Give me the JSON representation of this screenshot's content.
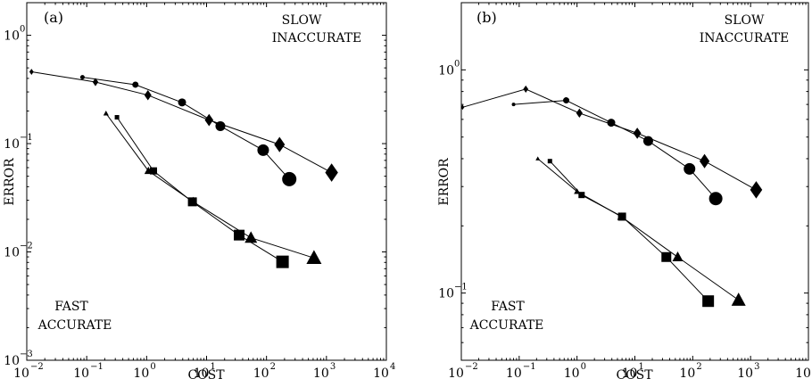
{
  "chart_data": [
    {
      "type": "scatter",
      "panel_label": "(a)",
      "xlabel": "COST",
      "ylabel": "ERROR",
      "xscale": "log",
      "yscale": "log",
      "xlim": [
        0.01,
        10000
      ],
      "ylim": [
        0.001,
        2
      ],
      "x_ticks": [
        {
          "value": 0.01,
          "base": "10",
          "exp": "−2"
        },
        {
          "value": 0.1,
          "base": "10",
          "exp": "−1"
        },
        {
          "value": 1,
          "base": "10",
          "exp": "0"
        },
        {
          "value": 10,
          "base": "10",
          "exp": "1"
        },
        {
          "value": 100,
          "base": "10",
          "exp": "2"
        },
        {
          "value": 1000,
          "base": "10",
          "exp": "3"
        },
        {
          "value": 10000,
          "base": "10",
          "exp": "4"
        }
      ],
      "y_ticks": [
        {
          "value": 0.001,
          "base": "10",
          "exp": "−3"
        },
        {
          "value": 0.01,
          "base": "10",
          "exp": "−2"
        },
        {
          "value": 0.1,
          "base": "10",
          "exp": "−1"
        },
        {
          "value": 1,
          "base": "10",
          "exp": "0"
        }
      ],
      "annotations": {
        "top_right": [
          "SLOW",
          "INACCURATE"
        ],
        "bottom_left": [
          "FAST",
          "ACCURATE"
        ]
      },
      "series": [
        {
          "marker": "diamond",
          "points": [
            {
              "x": 0.012,
              "y": 0.46,
              "s": 3
            },
            {
              "x": 0.14,
              "y": 0.37,
              "s": 4
            },
            {
              "x": 1.05,
              "y": 0.28,
              "s": 5
            },
            {
              "x": 11,
              "y": 0.165,
              "s": 6
            },
            {
              "x": 165,
              "y": 0.098,
              "s": 7.5
            },
            {
              "x": 1220,
              "y": 0.054,
              "s": 9
            }
          ]
        },
        {
          "marker": "circle",
          "points": [
            {
              "x": 0.085,
              "y": 0.41,
              "s": 2.5
            },
            {
              "x": 0.65,
              "y": 0.35,
              "s": 3.5
            },
            {
              "x": 3.9,
              "y": 0.24,
              "s": 4.5
            },
            {
              "x": 17,
              "y": 0.145,
              "s": 5.5
            },
            {
              "x": 88,
              "y": 0.087,
              "s": 6.5
            },
            {
              "x": 240,
              "y": 0.047,
              "s": 8
            }
          ]
        },
        {
          "marker": "triangle",
          "points": [
            {
              "x": 0.21,
              "y": 0.19,
              "s": 3
            },
            {
              "x": 1.07,
              "y": 0.056,
              "s": 4.5
            },
            {
              "x": 6,
              "y": 0.029,
              "s": 5.5
            },
            {
              "x": 55,
              "y": 0.0135,
              "s": 7
            },
            {
              "x": 620,
              "y": 0.0088,
              "s": 8.5
            }
          ]
        },
        {
          "marker": "square",
          "points": [
            {
              "x": 0.32,
              "y": 0.175,
              "s": 2.5
            },
            {
              "x": 1.3,
              "y": 0.056,
              "s": 4
            },
            {
              "x": 5.8,
              "y": 0.029,
              "s": 5
            },
            {
              "x": 35,
              "y": 0.0143,
              "s": 6
            },
            {
              "x": 185,
              "y": 0.0081,
              "s": 7
            }
          ]
        }
      ]
    },
    {
      "type": "scatter",
      "panel_label": "(b)",
      "xlabel": "COST",
      "ylabel": "ERROR",
      "xscale": "log",
      "yscale": "log",
      "xlim": [
        0.01,
        10000
      ],
      "ylim": [
        0.05,
        2
      ],
      "x_ticks": [
        {
          "value": 0.01,
          "base": "10",
          "exp": "−2"
        },
        {
          "value": 0.1,
          "base": "10",
          "exp": "−1"
        },
        {
          "value": 1,
          "base": "10",
          "exp": "0"
        },
        {
          "value": 10,
          "base": "10",
          "exp": "1"
        },
        {
          "value": 100,
          "base": "10",
          "exp": "2"
        },
        {
          "value": 1000,
          "base": "10",
          "exp": "3"
        },
        {
          "value": 10000,
          "base": "10",
          "exp": "4"
        }
      ],
      "y_ticks": [
        {
          "value": 0.1,
          "base": "10",
          "exp": "−1"
        },
        {
          "value": 1,
          "base": "10",
          "exp": "0"
        }
      ],
      "annotations": {
        "top_right": [
          "SLOW",
          "INACCURATE"
        ],
        "bottom_left": [
          "FAST",
          "ACCURATE"
        ]
      },
      "series": [
        {
          "marker": "diamond",
          "points": [
            {
              "x": 0.0105,
              "y": 0.68,
              "s": 2.5
            },
            {
              "x": 0.13,
              "y": 0.82,
              "s": 3.5
            },
            {
              "x": 1.1,
              "y": 0.64,
              "s": 4.5
            },
            {
              "x": 11,
              "y": 0.52,
              "s": 5.5
            },
            {
              "x": 160,
              "y": 0.39,
              "s": 7
            },
            {
              "x": 1250,
              "y": 0.29,
              "s": 8.5
            }
          ]
        },
        {
          "marker": "circle",
          "points": [
            {
              "x": 0.08,
              "y": 0.7,
              "s": 2
            },
            {
              "x": 0.65,
              "y": 0.73,
              "s": 3.5
            },
            {
              "x": 3.9,
              "y": 0.58,
              "s": 4.5
            },
            {
              "x": 17,
              "y": 0.48,
              "s": 5.5
            },
            {
              "x": 88,
              "y": 0.36,
              "s": 6.5
            },
            {
              "x": 250,
              "y": 0.265,
              "s": 7.5
            }
          ]
        },
        {
          "marker": "triangle",
          "points": [
            {
              "x": 0.21,
              "y": 0.4,
              "s": 2.5
            },
            {
              "x": 1.0,
              "y": 0.285,
              "s": 3.5
            },
            {
              "x": 5.8,
              "y": 0.22,
              "s": 4.5
            },
            {
              "x": 55,
              "y": 0.145,
              "s": 6
            },
            {
              "x": 620,
              "y": 0.093,
              "s": 8
            }
          ]
        },
        {
          "marker": "square",
          "points": [
            {
              "x": 0.34,
              "y": 0.39,
              "s": 2.5
            },
            {
              "x": 1.2,
              "y": 0.275,
              "s": 3.5
            },
            {
              "x": 6,
              "y": 0.22,
              "s": 4.5
            },
            {
              "x": 35,
              "y": 0.145,
              "s": 5.5
            },
            {
              "x": 185,
              "y": 0.092,
              "s": 6.5
            }
          ]
        }
      ]
    }
  ]
}
